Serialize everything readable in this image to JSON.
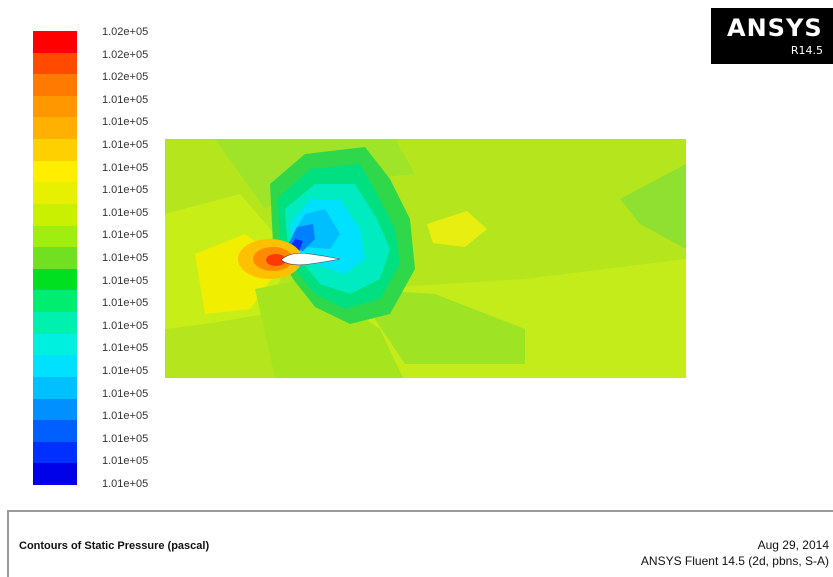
{
  "logo": {
    "brand": "ANSYS",
    "release": "R14.5"
  },
  "colorbar": {
    "labels": [
      "1.02e+05",
      "1.02e+05",
      "1.02e+05",
      "1.01e+05",
      "1.01e+05",
      "1.01e+05",
      "1.01e+05",
      "1.01e+05",
      "1.01e+05",
      "1.01e+05",
      "1.01e+05",
      "1.01e+05",
      "1.01e+05",
      "1.01e+05",
      "1.01e+05",
      "1.01e+05",
      "1.01e+05",
      "1.01e+05",
      "1.01e+05",
      "1.01e+05",
      "1.01e+05"
    ],
    "colors": [
      "#ff0000",
      "#ff4a00",
      "#ff7a00",
      "#ff9800",
      "#ffb000",
      "#ffd000",
      "#ffee00",
      "#e6f000",
      "#c8f000",
      "#a0ee10",
      "#70e020",
      "#00e020",
      "#00ee70",
      "#00f0b0",
      "#00f0e0",
      "#00e0ff",
      "#00c0ff",
      "#0090ff",
      "#0060ff",
      "#0030ff",
      "#0000e8"
    ]
  },
  "contour": {
    "background": "#b5e61d",
    "airfoil_fill": "#ffffff"
  },
  "footer": {
    "title": "Contours of Static Pressure (pascal)",
    "date": "Aug 29, 2014",
    "version": "ANSYS Fluent 14.5 (2d, pbns, S-A)"
  }
}
